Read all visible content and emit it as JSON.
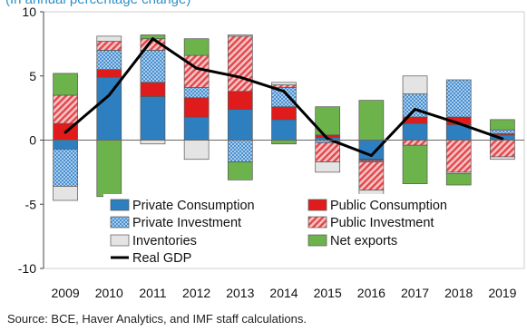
{
  "chart_data": {
    "type": "bar",
    "subtitle": "(In annual percentage change)",
    "source": "Source: BCE, Haver Analytics, and IMF staff calculations.",
    "categories": [
      "2009",
      "2010",
      "2011",
      "2012",
      "2013",
      "2014",
      "2015",
      "2016",
      "2017",
      "2018",
      "2019"
    ],
    "ylim": [
      -10,
      10
    ],
    "yticks": [
      10,
      5,
      0,
      -5,
      -10
    ],
    "stacked": true,
    "series": [
      {
        "name": "Private Consumption",
        "color": "#2d7fc0",
        "pattern": "solid",
        "values": [
          -0.7,
          4.9,
          3.4,
          1.8,
          2.4,
          1.6,
          0.2,
          -1.5,
          1.3,
          1.2,
          0.4
        ]
      },
      {
        "name": "Public Consumption",
        "color": "#e01b1b",
        "pattern": "solid",
        "values": [
          1.3,
          0.6,
          1.1,
          1.5,
          1.4,
          1.0,
          0.2,
          -0.1,
          0.5,
          0.6,
          0.1
        ]
      },
      {
        "name": "Private Investment",
        "color": "#2d7fc0",
        "pattern": "dots",
        "values": [
          -2.9,
          1.5,
          2.5,
          0.8,
          -1.7,
          1.5,
          -0.2,
          -0.1,
          1.8,
          2.9,
          0.3
        ]
      },
      {
        "name": "Public Investment",
        "color": "#e8595f",
        "pattern": "hatch",
        "values": [
          2.2,
          0.7,
          0.9,
          2.5,
          4.3,
          0.2,
          -1.5,
          -2.2,
          -0.4,
          -2.5,
          -1.3
        ]
      },
      {
        "name": "Inventories",
        "color": "#e4e4e4",
        "pattern": "solid",
        "values": [
          -1.1,
          0.4,
          -0.3,
          -1.5,
          0.1,
          0.2,
          -0.8,
          -0.6,
          1.4,
          -0.1,
          -0.2
        ]
      },
      {
        "name": "Net exports",
        "color": "#6db34c",
        "pattern": "solid",
        "values": [
          1.7,
          -4.4,
          0.3,
          1.3,
          -1.4,
          -0.3,
          2.2,
          3.1,
          -3.0,
          -0.9,
          0.8
        ]
      }
    ],
    "line": {
      "name": "Real GDP",
      "color": "#000000",
      "values": [
        0.6,
        3.5,
        7.9,
        5.6,
        4.9,
        3.8,
        0.1,
        -1.2,
        2.4,
        1.3,
        0.1
      ]
    },
    "legend_placement": "bottom-left, inside plot",
    "grid": false
  }
}
